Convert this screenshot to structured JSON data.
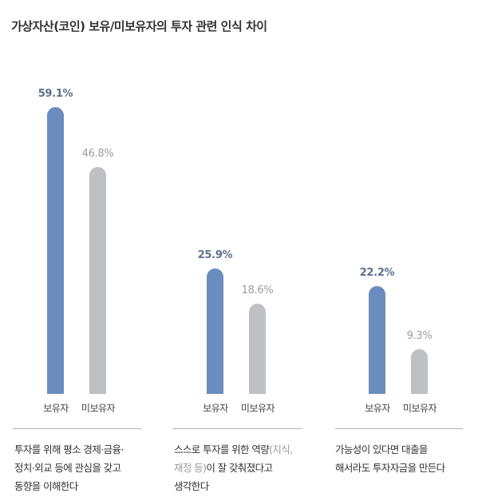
{
  "title": "가상자산(코인) 보유/미보유자의 투자 관련 인식 차이",
  "colors": {
    "owner": "#6b8cbe",
    "nonowner": "#bfc0c4"
  },
  "legend": {
    "owner": "보유자",
    "nonowner": "미보유자"
  },
  "panels": [
    {
      "owner_value": 59.1,
      "owner_label": "59.1%",
      "nonowner_value": 46.8,
      "nonowner_label": "46.8%",
      "caption_lines": [
        "투자를 위해 평소 경제·금융·",
        "정치·외교 등에 관심을 갖고",
        "동향을 이해한다"
      ]
    },
    {
      "owner_value": 25.9,
      "owner_label": "25.9%",
      "nonowner_value": 18.6,
      "nonowner_label": "18.6%",
      "caption_line1_main": "스스로 투자를 위한 역량",
      "caption_line1_light": "(지식,",
      "caption_line2_light": "재정 등)",
      "caption_line2_main": "이 잘 갖춰졌다고",
      "caption_line3": "생각한다"
    },
    {
      "owner_value": 22.2,
      "owner_label": "22.2%",
      "nonowner_value": 9.3,
      "nonowner_label": "9.3%",
      "caption_lines": [
        "가능성이 있다면 대출을",
        "해서라도 투자자금을 만든다"
      ]
    }
  ],
  "chart_data": {
    "type": "bar",
    "title": "가상자산(코인) 보유/미보유자의 투자 관련 인식 차이",
    "categories": [
      "투자를 위해 평소 경제·금융·정치·외교 등에 관심을 갖고 동향을 이해한다",
      "스스로 투자를 위한 역량(지식, 재정 등)이 잘 갖춰졌다고 생각한다",
      "가능성이 있다면 대출을 해서라도 투자자금을 만든다"
    ],
    "series": [
      {
        "name": "보유자",
        "values": [
          59.1,
          25.9,
          22.2
        ],
        "color": "#6b8cbe"
      },
      {
        "name": "미보유자",
        "values": [
          46.8,
          18.6,
          9.3
        ],
        "color": "#bfc0c4"
      }
    ],
    "unit": "%",
    "xlabel": "",
    "ylabel": "",
    "grid": false,
    "legend_position": "below each bar"
  }
}
